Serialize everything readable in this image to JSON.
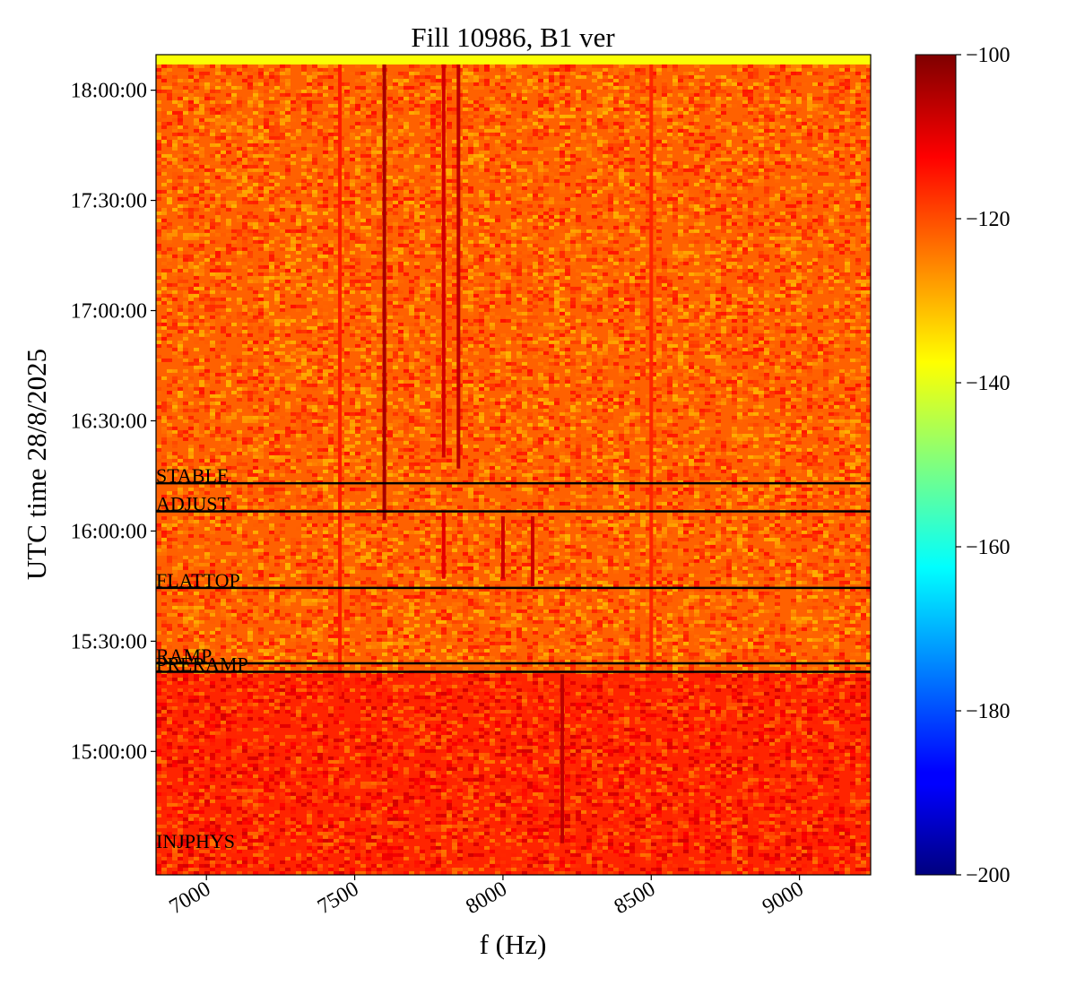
{
  "chart_data": {
    "type": "heatmap",
    "title": "Fill 10986, B1 ver",
    "xlabel": "f (Hz)",
    "ylabel": "UTC time 28/8/2025",
    "xlim": [
      6830,
      9240
    ],
    "ylim_seconds_of_day": [
      51984,
      65380
    ],
    "x_ticks": [
      7000,
      7500,
      8000,
      8500,
      9000
    ],
    "x_tick_labels": [
      "7000",
      "7500",
      "8000",
      "8500",
      "9000"
    ],
    "y_ticks": [
      "15:00:00",
      "15:30:00",
      "16:00:00",
      "16:30:00",
      "17:00:00",
      "17:30:00",
      "18:00:00"
    ],
    "colorbar": {
      "colormap": "jet",
      "range": [
        -200,
        -100
      ],
      "ticks": [
        -100,
        -120,
        -140,
        -160,
        -180,
        -200
      ],
      "tick_labels": [
        "−100",
        "−120",
        "−140",
        "−160",
        "−180",
        "−200"
      ]
    },
    "background_level_before_ramp": -116,
    "background_level_after_ramp": -122,
    "beam_modes": [
      {
        "label": "STABLE",
        "time": "16:13:00"
      },
      {
        "label": "ADJUST",
        "time": "16:05:20"
      },
      {
        "label": "FLATTOP",
        "time": "15:44:30"
      },
      {
        "label": "RAMP",
        "time": "15:24:00"
      },
      {
        "label": "PRERAMP",
        "time": "15:21:40"
      },
      {
        "label": "INJPHYS",
        "time": "14:33:30"
      }
    ],
    "spectral_lines": [
      {
        "f_hz": 7600,
        "from": "16:03:00",
        "to": "18:07:00",
        "level": -104
      },
      {
        "f_hz": 7800,
        "from": "16:20:00",
        "to": "18:07:00",
        "level": -108
      },
      {
        "f_hz": 7850,
        "from": "16:17:00",
        "to": "18:07:00",
        "level": -106
      },
      {
        "f_hz": 7450,
        "from": "15:15:00",
        "to": "18:07:00",
        "level": -115
      },
      {
        "f_hz": 8500,
        "from": "15:20:00",
        "to": "18:07:00",
        "level": -116
      },
      {
        "f_hz": 8200,
        "from": "14:35:00",
        "to": "15:21:00",
        "level": -106
      },
      {
        "f_hz": 8000,
        "from": "15:47:00",
        "to": "16:04:00",
        "level": -108
      },
      {
        "f_hz": 8100,
        "from": "15:45:00",
        "to": "16:04:00",
        "level": -108
      },
      {
        "f_hz": 7800,
        "from": "15:47:00",
        "to": "16:05:00",
        "level": -110
      }
    ]
  }
}
